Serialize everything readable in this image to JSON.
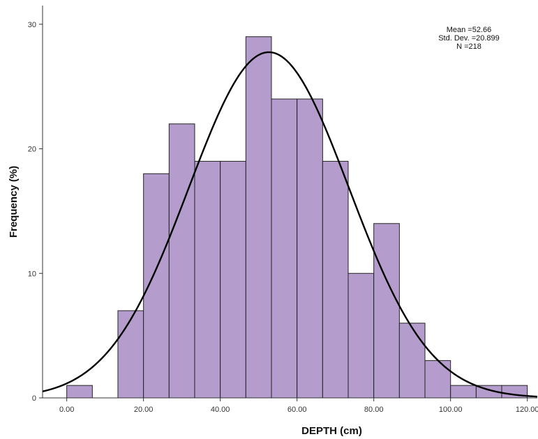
{
  "chart_data": {
    "type": "bar",
    "subtype": "histogram",
    "xlabel": "DEPTH (cm)",
    "ylabel": "Frequency (%)",
    "xlim": [
      -6.3,
      122.6
    ],
    "ylim": [
      0,
      31.5
    ],
    "x_ticks": [
      0,
      20,
      40,
      60,
      80,
      100,
      120
    ],
    "x_tick_labels": [
      "0.00",
      "20.00",
      "40.00",
      "60.00",
      "80.00",
      "100.00",
      "120.00"
    ],
    "y_ticks": [
      0,
      10,
      20,
      30
    ],
    "y_tick_labels": [
      "0",
      "10",
      "20",
      "30"
    ],
    "bin_width": 6.67,
    "bins": [
      {
        "start": 0.0,
        "end": 6.67,
        "value": 1
      },
      {
        "start": 13.33,
        "end": 20.0,
        "value": 7
      },
      {
        "start": 20.0,
        "end": 26.67,
        "value": 18
      },
      {
        "start": 26.67,
        "end": 33.33,
        "value": 22
      },
      {
        "start": 33.33,
        "end": 40.0,
        "value": 19
      },
      {
        "start": 40.0,
        "end": 46.67,
        "value": 19
      },
      {
        "start": 46.67,
        "end": 53.33,
        "value": 29
      },
      {
        "start": 53.33,
        "end": 60.0,
        "value": 24
      },
      {
        "start": 60.0,
        "end": 66.67,
        "value": 24
      },
      {
        "start": 66.67,
        "end": 73.33,
        "value": 19
      },
      {
        "start": 73.33,
        "end": 80.0,
        "value": 10
      },
      {
        "start": 80.0,
        "end": 86.67,
        "value": 14
      },
      {
        "start": 86.67,
        "end": 93.33,
        "value": 6
      },
      {
        "start": 93.33,
        "end": 100.0,
        "value": 3
      },
      {
        "start": 100.0,
        "end": 106.67,
        "value": 1
      },
      {
        "start": 106.67,
        "end": 113.33,
        "value": 1
      },
      {
        "start": 113.33,
        "end": 120.0,
        "value": 1
      }
    ],
    "normal_curve": {
      "mean": 52.66,
      "std_dev": 20.899,
      "n": 218
    },
    "bar_color": "#b49ccc",
    "bar_edge_color": "#222222",
    "curve_color": "#000000",
    "grid": false,
    "stats_box_placement": "top-right",
    "stats_lines": [
      "Mean =52.66",
      "Std. Dev. =20.899",
      "N =218"
    ]
  }
}
